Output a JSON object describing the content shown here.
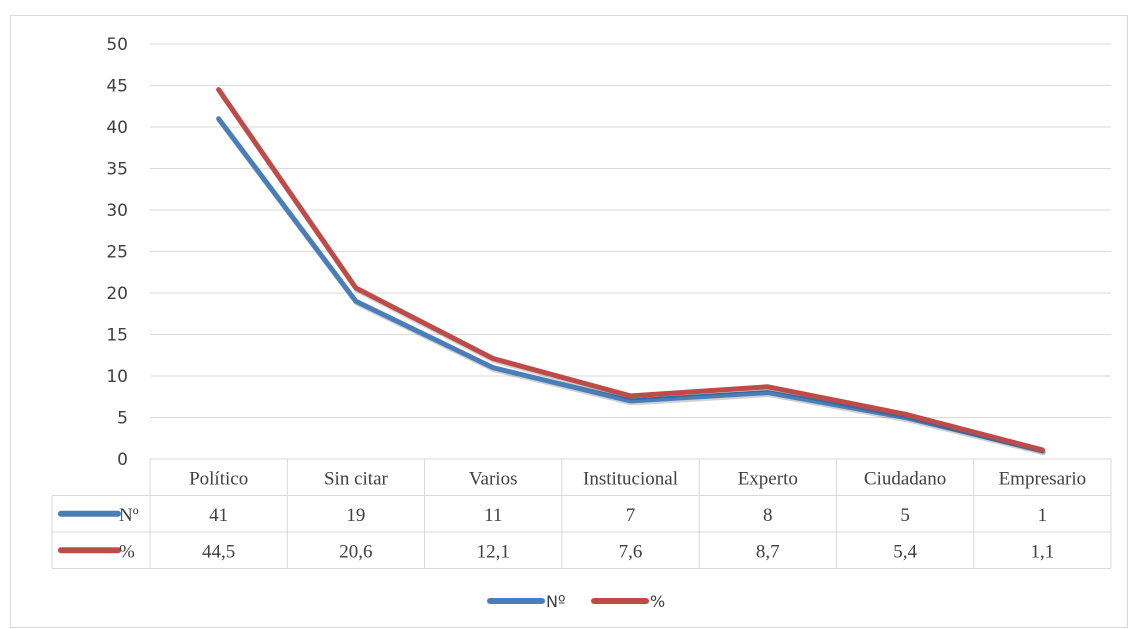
{
  "chart_data": {
    "type": "line",
    "categories": [
      "Político",
      "Sin citar",
      "Varios",
      "Institucional",
      "Experto",
      "Ciudadano",
      "Empresario"
    ],
    "series": [
      {
        "name": "Nº",
        "values": [
          41,
          19,
          11,
          7,
          8,
          5,
          1
        ],
        "labels": [
          "41",
          "19",
          "11",
          "7",
          "8",
          "5",
          "1"
        ],
        "table_label": "Nº",
        "color": "#4a7ebb"
      },
      {
        "name": "%",
        "values": [
          44.5,
          20.6,
          12.1,
          7.6,
          8.7,
          5.4,
          1.1
        ],
        "labels": [
          "44,5",
          "20,6",
          "12,1",
          "7,6",
          "8,7",
          "5,4",
          "1,1"
        ],
        "table_label": "%",
        "color": "#be4b48"
      }
    ],
    "ylim": [
      0,
      50
    ],
    "yticks": [
      0,
      5,
      10,
      15,
      20,
      25,
      30,
      35,
      40,
      45,
      50
    ],
    "grid": true,
    "legend": "bottom",
    "data_table": true
  }
}
